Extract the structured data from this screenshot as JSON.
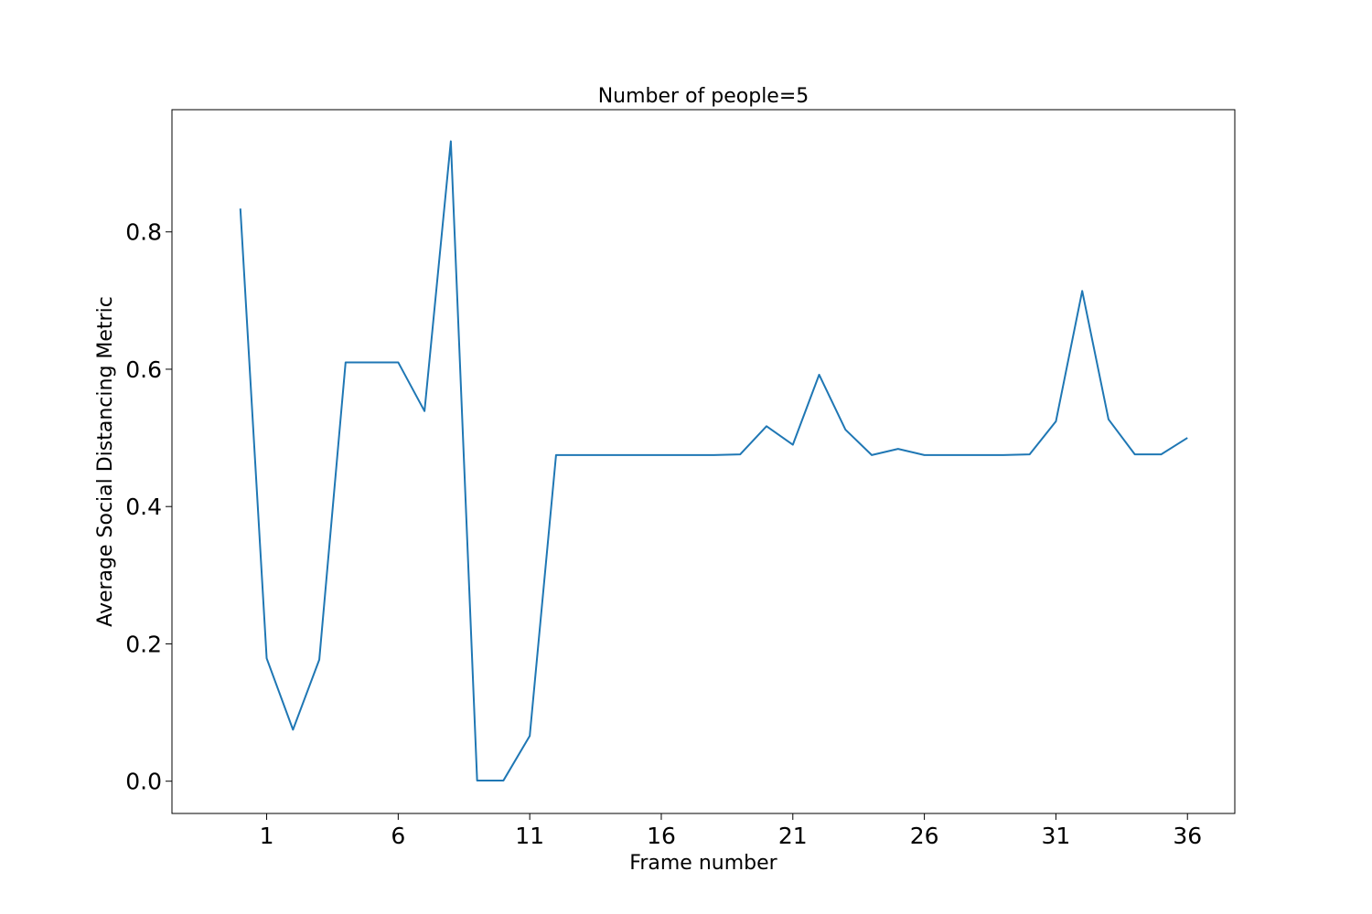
{
  "chart_data": {
    "type": "line",
    "title": "Number of people=5",
    "xlabel": "Frame number",
    "ylabel": "Average Social Distancing Metric",
    "xlim": [
      -2.6,
      37.8
    ],
    "ylim": [
      -0.047,
      0.978
    ],
    "xticks": [
      1,
      6,
      11,
      16,
      21,
      26,
      31,
      36
    ],
    "xtick_labels": [
      "1",
      "6",
      "11",
      "16",
      "21",
      "26",
      "31",
      "36"
    ],
    "yticks": [
      0.0,
      0.2,
      0.4,
      0.6,
      0.8
    ],
    "ytick_labels": [
      "0.0",
      "0.2",
      "0.4",
      "0.6",
      "0.8"
    ],
    "grid": false,
    "legend": "none",
    "series": [
      {
        "color": "#1f77b4",
        "x": [
          0,
          1,
          2,
          3,
          4,
          5,
          6,
          7,
          8,
          9,
          10,
          11,
          12,
          13,
          14,
          15,
          16,
          17,
          18,
          19,
          20,
          21,
          22,
          23,
          24,
          25,
          26,
          27,
          28,
          29,
          30,
          31,
          32,
          33,
          34,
          35,
          36
        ],
        "y": [
          0.834,
          0.179,
          0.075,
          0.177,
          0.61,
          0.61,
          0.61,
          0.539,
          0.932,
          0.001,
          0.001,
          0.066,
          0.475,
          0.475,
          0.475,
          0.475,
          0.475,
          0.475,
          0.475,
          0.476,
          0.517,
          0.49,
          0.592,
          0.512,
          0.475,
          0.484,
          0.475,
          0.475,
          0.475,
          0.475,
          0.476,
          0.524,
          0.714,
          0.527,
          0.476,
          0.476,
          0.5
        ]
      }
    ]
  }
}
